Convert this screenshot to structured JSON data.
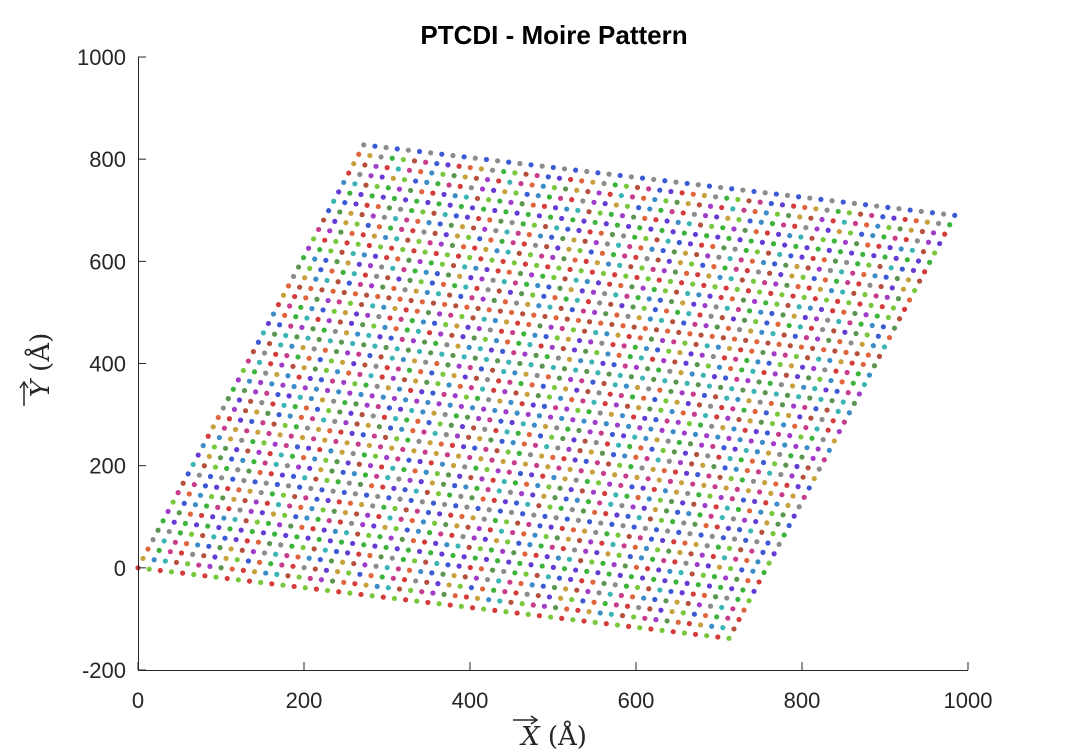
{
  "chart_data": {
    "type": "scatter",
    "title": "PTCDI - Moire Pattern",
    "xlabel": "X (Å)",
    "ylabel": "Y (Å)",
    "xlim": [
      0,
      1000
    ],
    "ylim": [
      -200,
      1000
    ],
    "xticks": [
      "0",
      "200",
      "400",
      "600",
      "800",
      "1000"
    ],
    "yticks": [
      "-200",
      "0",
      "200",
      "400",
      "600",
      "800",
      "1000"
    ],
    "grid": false,
    "lattice": {
      "origin": [
        0,
        0
      ],
      "a_end": [
        712,
        -138
      ],
      "b_end": [
        272,
        828
      ],
      "far_corner": [
        984,
        690
      ],
      "rows": 54,
      "points_per_row": 46
    },
    "colors": [
      "#d43c3c",
      "#3cb43c",
      "#3c5ad4",
      "#c8a03c",
      "#a03cc8",
      "#3cb4b4",
      "#e0643c",
      "#78c83c",
      "#643cd4",
      "#8c8c8c",
      "#c83c8c",
      "#3c8cc8",
      "#5a9650",
      "#b4503c"
    ]
  }
}
